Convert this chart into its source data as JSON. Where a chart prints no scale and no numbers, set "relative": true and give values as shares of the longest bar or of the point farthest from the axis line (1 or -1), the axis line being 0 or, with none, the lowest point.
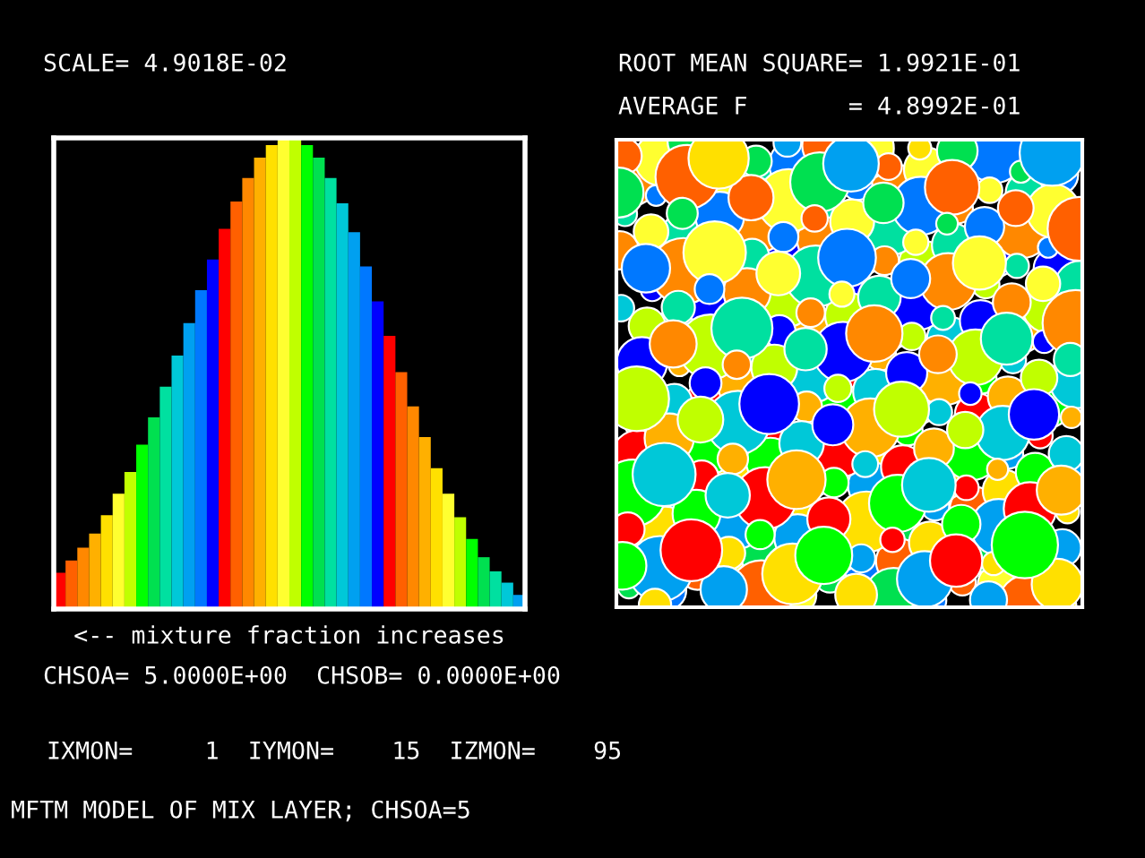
{
  "chart_data": {
    "type": "bar",
    "relative": true,
    "title": "SCALE= 4.9018E-02",
    "xlabel": "<-- mixture fraction increases",
    "annotations": [
      "ROOT MEAN SQUARE= 1.9921E-01",
      "AVERAGE F       = 4.8992E-01",
      "CHSOA= 5.0000E+00  CHSOB= 0.0000E+00",
      "IXMON=     1  IYMON=    15  IZMON=    95",
      "MFTM MODEL OF MIX LAYER; CHSOA=5"
    ],
    "categories": [
      null,
      null,
      null,
      null,
      null,
      null,
      null,
      null,
      null,
      null,
      null,
      null,
      null,
      null,
      null,
      null,
      null,
      null,
      null,
      null,
      null,
      null,
      null,
      null,
      null,
      null,
      null,
      null,
      null,
      null,
      null,
      null,
      null,
      null,
      null,
      null,
      null,
      null,
      null,
      null
    ],
    "values": [
      0.077,
      0.103,
      0.13,
      0.16,
      0.199,
      0.245,
      0.291,
      0.349,
      0.407,
      0.472,
      0.538,
      0.607,
      0.677,
      0.742,
      0.807,
      0.865,
      0.915,
      0.958,
      0.985,
      1.0,
      1.0,
      0.985,
      0.958,
      0.915,
      0.861,
      0.8,
      0.727,
      0.653,
      0.58,
      0.503,
      0.43,
      0.365,
      0.299,
      0.245,
      0.195,
      0.149,
      0.11,
      0.08,
      0.056,
      0.03
    ],
    "colors": [
      "#ff0000",
      "#ff6000",
      "#ff8800",
      "#ffb000",
      "#ffe000",
      "#ffff30",
      "#c0ff00",
      "#00ff00",
      "#00e050",
      "#00e0a0",
      "#00c8d8",
      "#00a0f0",
      "#0078ff",
      "#0000ff",
      "#ff0000",
      "#ff6000",
      "#ff8800",
      "#ffb000",
      "#ffe000",
      "#ffff30",
      "#c0ff00",
      "#00ff00",
      "#00e050",
      "#00e0a0",
      "#00c8d8",
      "#00a0f0",
      "#0078ff",
      "#0000ff",
      "#ff0000",
      "#ff6000",
      "#ff8800",
      "#ffb000",
      "#ffe000",
      "#ffff30",
      "#c0ff00",
      "#00ff00",
      "#00e050",
      "#00e0a0",
      "#00c8d8",
      "#00a0f0"
    ]
  }
}
